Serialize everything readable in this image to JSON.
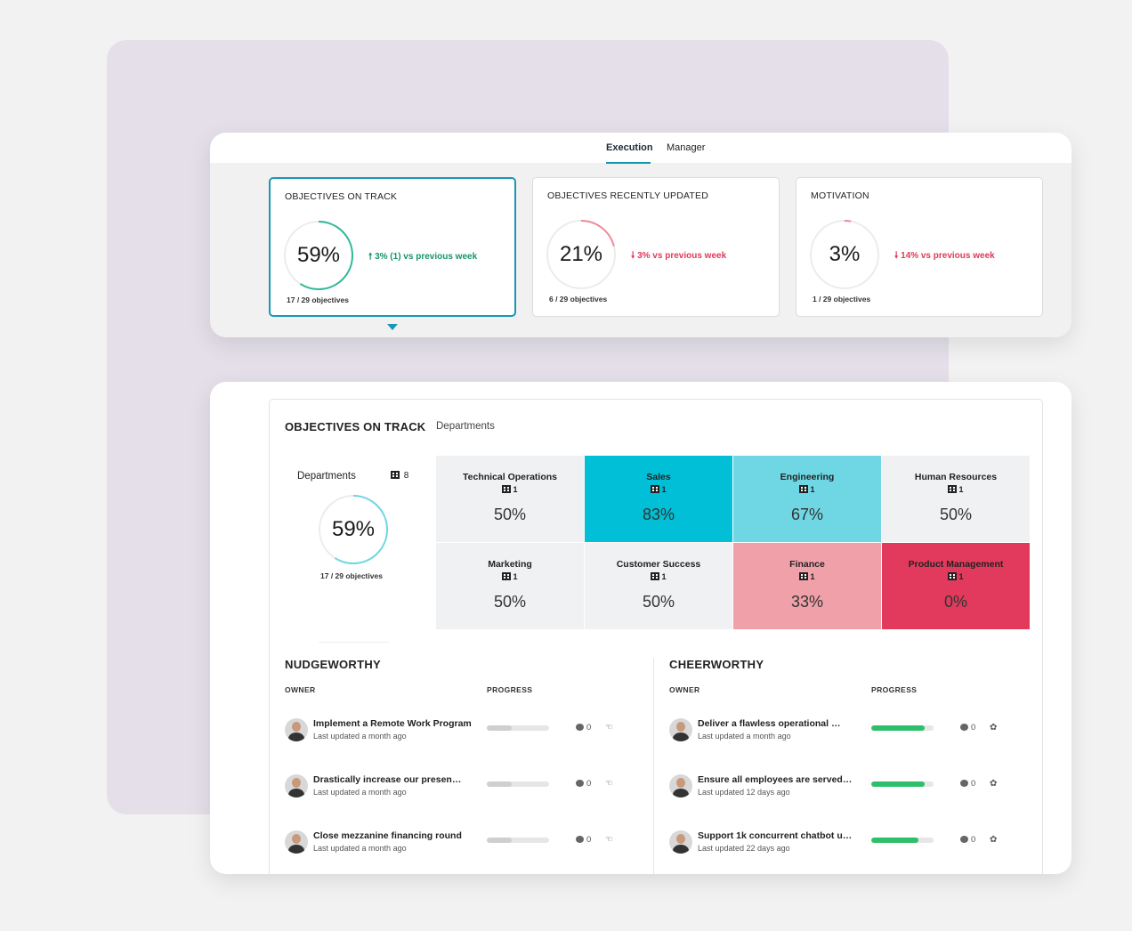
{
  "tabs": [
    {
      "label": "Execution",
      "active": true
    },
    {
      "label": "Manager",
      "active": false
    }
  ],
  "metrics": [
    {
      "title": "OBJECTIVES ON TRACK",
      "value": "59%",
      "progress": 0.59,
      "ring_color": "#2fb89a",
      "delta_arrow": "🠕",
      "delta": "3% (1) vs previous week",
      "direction": "up",
      "sub": "17 / 29 objectives"
    },
    {
      "title": "OBJECTIVES RECENTLY UPDATED",
      "value": "21%",
      "progress": 0.21,
      "ring_color": "#f08a9a",
      "delta_arrow": "🠗",
      "delta": "3% vs previous week",
      "direction": "down",
      "sub": "6 / 29 objectives"
    },
    {
      "title": "MOTIVATION",
      "value": "3%",
      "progress": 0.03,
      "ring_color": "#f08a9a",
      "delta_arrow": "🠗",
      "delta": "14% vs previous week",
      "direction": "down",
      "sub": "1 / 29 objectives"
    }
  ],
  "details": {
    "title": "OBJECTIVES ON TRACK",
    "subtitle": "Departments",
    "dept_label": "Departments",
    "dept_count": "8",
    "dept_value": "59%",
    "dept_progress": 0.59,
    "dept_sub": "17 / 29 objectives"
  },
  "departments": [
    {
      "name": "Technical Operations",
      "count": "1",
      "value": "50%",
      "color": "#f0f1f3"
    },
    {
      "name": "Sales",
      "count": "1",
      "value": "83%",
      "color": "#00bfd6"
    },
    {
      "name": "Engineering",
      "count": "1",
      "value": "67%",
      "color": "#6fd6e4"
    },
    {
      "name": "Human Resources",
      "count": "1",
      "value": "50%",
      "color": "#f0f1f3"
    },
    {
      "name": "Marketing",
      "count": "1",
      "value": "50%",
      "color": "#f0f1f3"
    },
    {
      "name": "Customer Success",
      "count": "1",
      "value": "50%",
      "color": "#f0f1f3"
    },
    {
      "name": "Finance",
      "count": "1",
      "value": "33%",
      "color": "#f0a0a8"
    },
    {
      "name": "Product Management",
      "count": "1",
      "value": "0%",
      "color": "#e23a5c"
    }
  ],
  "nudgeworthy": {
    "title": "NUDGEWORTHY",
    "owner_label": "OWNER",
    "progress_label": "PROGRESS",
    "items": [
      {
        "title": "Implement a Remote Work Program",
        "updated": "Last updated a month ago",
        "progress": 0.4,
        "comments": "0"
      },
      {
        "title": "Drastically increase our presen…",
        "updated": "Last updated a month ago",
        "progress": 0.4,
        "comments": "0"
      },
      {
        "title": "Close mezzanine financing round",
        "updated": "Last updated a month ago",
        "progress": 0.4,
        "comments": "0"
      }
    ]
  },
  "cheerworthy": {
    "title": "CHEERWORTHY",
    "owner_label": "OWNER",
    "progress_label": "PROGRESS",
    "items": [
      {
        "title": "Deliver a flawless operational …",
        "updated": "Last updated a month ago",
        "progress": 0.86,
        "comments": "0"
      },
      {
        "title": "Ensure all employees are served…",
        "updated": "Last updated 12 days ago",
        "progress": 0.86,
        "comments": "0"
      },
      {
        "title": "Support 1k concurrent chatbot u…",
        "updated": "Last updated 22 days ago",
        "progress": 0.76,
        "comments": "0"
      }
    ]
  }
}
